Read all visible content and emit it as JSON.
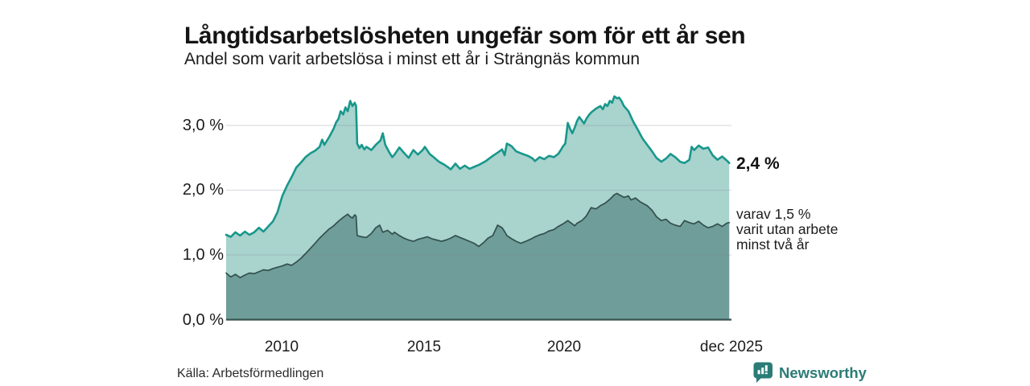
{
  "header": {
    "title": "Långtidsarbetslösheten ungefär som för ett år sen",
    "subtitle": "Andel som varit arbetslösa i minst ett år i Strängnäs kommun"
  },
  "annotations": {
    "total_end_label": "2,4 %",
    "subset_lines": [
      "varav 1,5 %",
      "varit utan arbete",
      "minst två år"
    ]
  },
  "footer": {
    "source": "Källa: Arbetsförmedlingen",
    "brand": "Newsworthy"
  },
  "colors": {
    "total_line": "#19978c",
    "total_fill": "#a9d3cd",
    "subset_line": "#32504c",
    "subset_fill": "#6f9d99",
    "gridline": "#8a8a9e",
    "baseline": "#3a5551",
    "brand_teal": "#2b7c76"
  },
  "chart_data": {
    "type": "area",
    "title": "Långtidsarbetslösheten ungefär som för ett år sen",
    "subtitle": "Andel som varit arbetslösa i minst ett år i Strängnäs kommun",
    "unit": "%",
    "grid": true,
    "legend_position": "right-edge-labels",
    "x_axis": {
      "range_years": [
        2008.0,
        2026.0
      ],
      "ticks": [
        "2010",
        "2015",
        "2020",
        "dec 2025"
      ],
      "tick_years": [
        2010.0,
        2015.0,
        2020.0,
        2025.92
      ]
    },
    "y_axis": {
      "range": [
        0.0,
        3.6
      ],
      "ticks": [
        "0,0 %",
        "1,0 %",
        "2,0 %",
        "3,0 %"
      ],
      "tick_values": [
        0.0,
        1.0,
        2.0,
        3.0
      ]
    },
    "series": [
      {
        "name": "Andel som varit arbetslösa i minst ett år",
        "end_value": 2.4,
        "end_label": "2,4 %",
        "points": [
          [
            2008.0,
            1.31
          ],
          [
            2008.17,
            1.28
          ],
          [
            2008.33,
            1.35
          ],
          [
            2008.5,
            1.3
          ],
          [
            2008.67,
            1.36
          ],
          [
            2008.83,
            1.31
          ],
          [
            2009.0,
            1.35
          ],
          [
            2009.17,
            1.42
          ],
          [
            2009.33,
            1.36
          ],
          [
            2009.5,
            1.44
          ],
          [
            2009.67,
            1.52
          ],
          [
            2009.83,
            1.66
          ],
          [
            2010.0,
            1.91
          ],
          [
            2010.17,
            2.07
          ],
          [
            2010.33,
            2.2
          ],
          [
            2010.5,
            2.35
          ],
          [
            2010.67,
            2.43
          ],
          [
            2010.83,
            2.51
          ],
          [
            2011.0,
            2.57
          ],
          [
            2011.17,
            2.61
          ],
          [
            2011.33,
            2.67
          ],
          [
            2011.42,
            2.78
          ],
          [
            2011.5,
            2.7
          ],
          [
            2011.67,
            2.82
          ],
          [
            2011.83,
            2.95
          ],
          [
            2011.92,
            3.05
          ],
          [
            2012.0,
            3.1
          ],
          [
            2012.08,
            3.22
          ],
          [
            2012.17,
            3.17
          ],
          [
            2012.25,
            3.28
          ],
          [
            2012.33,
            3.22
          ],
          [
            2012.42,
            3.38
          ],
          [
            2012.5,
            3.3
          ],
          [
            2012.58,
            3.35
          ],
          [
            2012.63,
            3.3
          ],
          [
            2012.67,
            2.72
          ],
          [
            2012.75,
            2.65
          ],
          [
            2012.83,
            2.7
          ],
          [
            2012.92,
            2.63
          ],
          [
            2013.0,
            2.67
          ],
          [
            2013.17,
            2.62
          ],
          [
            2013.33,
            2.7
          ],
          [
            2013.5,
            2.77
          ],
          [
            2013.58,
            2.88
          ],
          [
            2013.67,
            2.7
          ],
          [
            2013.83,
            2.57
          ],
          [
            2013.92,
            2.51
          ],
          [
            2014.0,
            2.55
          ],
          [
            2014.17,
            2.66
          ],
          [
            2014.33,
            2.58
          ],
          [
            2014.5,
            2.5
          ],
          [
            2014.67,
            2.62
          ],
          [
            2014.83,
            2.55
          ],
          [
            2015.0,
            2.62
          ],
          [
            2015.08,
            2.67
          ],
          [
            2015.25,
            2.56
          ],
          [
            2015.42,
            2.5
          ],
          [
            2015.58,
            2.44
          ],
          [
            2015.75,
            2.4
          ],
          [
            2015.92,
            2.35
          ],
          [
            2016.0,
            2.32
          ],
          [
            2016.17,
            2.41
          ],
          [
            2016.33,
            2.33
          ],
          [
            2016.5,
            2.38
          ],
          [
            2016.67,
            2.33
          ],
          [
            2016.83,
            2.36
          ],
          [
            2017.0,
            2.39
          ],
          [
            2017.25,
            2.45
          ],
          [
            2017.5,
            2.53
          ],
          [
            2017.67,
            2.58
          ],
          [
            2017.83,
            2.63
          ],
          [
            2017.92,
            2.54
          ],
          [
            2018.0,
            2.72
          ],
          [
            2018.17,
            2.68
          ],
          [
            2018.33,
            2.6
          ],
          [
            2018.5,
            2.57
          ],
          [
            2018.75,
            2.53
          ],
          [
            2018.92,
            2.49
          ],
          [
            2019.0,
            2.45
          ],
          [
            2019.17,
            2.51
          ],
          [
            2019.33,
            2.48
          ],
          [
            2019.5,
            2.53
          ],
          [
            2019.67,
            2.51
          ],
          [
            2019.83,
            2.56
          ],
          [
            2019.92,
            2.62
          ],
          [
            2020.0,
            2.68
          ],
          [
            2020.08,
            2.72
          ],
          [
            2020.17,
            3.04
          ],
          [
            2020.25,
            2.95
          ],
          [
            2020.33,
            2.88
          ],
          [
            2020.42,
            2.97
          ],
          [
            2020.5,
            3.07
          ],
          [
            2020.58,
            3.13
          ],
          [
            2020.67,
            3.08
          ],
          [
            2020.75,
            3.03
          ],
          [
            2020.83,
            3.1
          ],
          [
            2020.92,
            3.16
          ],
          [
            2021.0,
            3.2
          ],
          [
            2021.17,
            3.26
          ],
          [
            2021.33,
            3.3
          ],
          [
            2021.42,
            3.25
          ],
          [
            2021.5,
            3.33
          ],
          [
            2021.58,
            3.3
          ],
          [
            2021.67,
            3.38
          ],
          [
            2021.75,
            3.35
          ],
          [
            2021.83,
            3.45
          ],
          [
            2021.92,
            3.42
          ],
          [
            2022.0,
            3.43
          ],
          [
            2022.08,
            3.38
          ],
          [
            2022.17,
            3.3
          ],
          [
            2022.33,
            3.22
          ],
          [
            2022.5,
            3.06
          ],
          [
            2022.67,
            2.93
          ],
          [
            2022.83,
            2.8
          ],
          [
            2023.0,
            2.7
          ],
          [
            2023.17,
            2.6
          ],
          [
            2023.33,
            2.5
          ],
          [
            2023.5,
            2.44
          ],
          [
            2023.67,
            2.49
          ],
          [
            2023.83,
            2.56
          ],
          [
            2024.0,
            2.51
          ],
          [
            2024.17,
            2.44
          ],
          [
            2024.33,
            2.42
          ],
          [
            2024.5,
            2.47
          ],
          [
            2024.58,
            2.67
          ],
          [
            2024.67,
            2.62
          ],
          [
            2024.83,
            2.69
          ],
          [
            2025.0,
            2.64
          ],
          [
            2025.17,
            2.66
          ],
          [
            2025.33,
            2.54
          ],
          [
            2025.5,
            2.47
          ],
          [
            2025.67,
            2.52
          ],
          [
            2025.83,
            2.46
          ],
          [
            2025.92,
            2.42
          ]
        ]
      },
      {
        "name": "varav utan arbete minst två år",
        "end_value": 1.5,
        "end_label": "varav 1,5 % varit utan arbete minst två år",
        "points": [
          [
            2008.0,
            0.72
          ],
          [
            2008.17,
            0.66
          ],
          [
            2008.33,
            0.7
          ],
          [
            2008.5,
            0.65
          ],
          [
            2008.67,
            0.69
          ],
          [
            2008.83,
            0.72
          ],
          [
            2009.0,
            0.71
          ],
          [
            2009.17,
            0.74
          ],
          [
            2009.33,
            0.77
          ],
          [
            2009.5,
            0.76
          ],
          [
            2009.67,
            0.79
          ],
          [
            2009.83,
            0.81
          ],
          [
            2010.0,
            0.83
          ],
          [
            2010.17,
            0.86
          ],
          [
            2010.33,
            0.84
          ],
          [
            2010.5,
            0.89
          ],
          [
            2010.67,
            0.95
          ],
          [
            2010.83,
            1.02
          ],
          [
            2011.0,
            1.1
          ],
          [
            2011.17,
            1.18
          ],
          [
            2011.33,
            1.26
          ],
          [
            2011.5,
            1.33
          ],
          [
            2011.67,
            1.4
          ],
          [
            2011.83,
            1.45
          ],
          [
            2012.0,
            1.52
          ],
          [
            2012.17,
            1.58
          ],
          [
            2012.33,
            1.63
          ],
          [
            2012.42,
            1.59
          ],
          [
            2012.5,
            1.57
          ],
          [
            2012.58,
            1.62
          ],
          [
            2012.63,
            1.6
          ],
          [
            2012.67,
            1.3
          ],
          [
            2012.83,
            1.28
          ],
          [
            2013.0,
            1.27
          ],
          [
            2013.17,
            1.33
          ],
          [
            2013.33,
            1.42
          ],
          [
            2013.47,
            1.46
          ],
          [
            2013.58,
            1.35
          ],
          [
            2013.75,
            1.38
          ],
          [
            2013.92,
            1.32
          ],
          [
            2014.0,
            1.35
          ],
          [
            2014.17,
            1.3
          ],
          [
            2014.33,
            1.26
          ],
          [
            2014.5,
            1.23
          ],
          [
            2014.67,
            1.21
          ],
          [
            2014.83,
            1.24
          ],
          [
            2015.0,
            1.26
          ],
          [
            2015.17,
            1.28
          ],
          [
            2015.33,
            1.25
          ],
          [
            2015.5,
            1.23
          ],
          [
            2015.67,
            1.21
          ],
          [
            2015.83,
            1.23
          ],
          [
            2016.0,
            1.26
          ],
          [
            2016.17,
            1.3
          ],
          [
            2016.33,
            1.27
          ],
          [
            2016.5,
            1.24
          ],
          [
            2016.67,
            1.21
          ],
          [
            2016.83,
            1.18
          ],
          [
            2017.0,
            1.13
          ],
          [
            2017.17,
            1.19
          ],
          [
            2017.33,
            1.26
          ],
          [
            2017.5,
            1.3
          ],
          [
            2017.67,
            1.46
          ],
          [
            2017.83,
            1.42
          ],
          [
            2017.92,
            1.36
          ],
          [
            2018.0,
            1.3
          ],
          [
            2018.17,
            1.25
          ],
          [
            2018.33,
            1.21
          ],
          [
            2018.5,
            1.18
          ],
          [
            2018.67,
            1.21
          ],
          [
            2018.83,
            1.24
          ],
          [
            2019.0,
            1.28
          ],
          [
            2019.17,
            1.31
          ],
          [
            2019.33,
            1.33
          ],
          [
            2019.5,
            1.37
          ],
          [
            2019.67,
            1.39
          ],
          [
            2019.83,
            1.44
          ],
          [
            2020.0,
            1.48
          ],
          [
            2020.17,
            1.53
          ],
          [
            2020.33,
            1.48
          ],
          [
            2020.42,
            1.45
          ],
          [
            2020.5,
            1.49
          ],
          [
            2020.67,
            1.53
          ],
          [
            2020.83,
            1.6
          ],
          [
            2020.92,
            1.67
          ],
          [
            2021.0,
            1.73
          ],
          [
            2021.17,
            1.71
          ],
          [
            2021.33,
            1.76
          ],
          [
            2021.5,
            1.8
          ],
          [
            2021.67,
            1.86
          ],
          [
            2021.83,
            1.93
          ],
          [
            2021.92,
            1.95
          ],
          [
            2022.0,
            1.93
          ],
          [
            2022.17,
            1.89
          ],
          [
            2022.33,
            1.91
          ],
          [
            2022.42,
            1.85
          ],
          [
            2022.58,
            1.88
          ],
          [
            2022.75,
            1.82
          ],
          [
            2022.92,
            1.78
          ],
          [
            2023.0,
            1.76
          ],
          [
            2023.17,
            1.69
          ],
          [
            2023.33,
            1.59
          ],
          [
            2023.5,
            1.53
          ],
          [
            2023.67,
            1.55
          ],
          [
            2023.83,
            1.49
          ],
          [
            2024.0,
            1.46
          ],
          [
            2024.17,
            1.44
          ],
          [
            2024.33,
            1.53
          ],
          [
            2024.5,
            1.5
          ],
          [
            2024.67,
            1.48
          ],
          [
            2024.83,
            1.52
          ],
          [
            2025.0,
            1.46
          ],
          [
            2025.17,
            1.42
          ],
          [
            2025.33,
            1.44
          ],
          [
            2025.5,
            1.48
          ],
          [
            2025.67,
            1.44
          ],
          [
            2025.83,
            1.49
          ],
          [
            2025.92,
            1.5
          ]
        ]
      }
    ]
  }
}
